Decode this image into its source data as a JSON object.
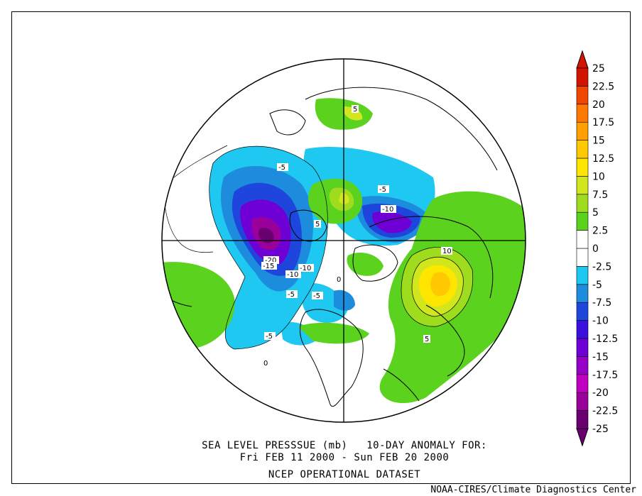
{
  "caption": {
    "line1": "SEA LEVEL PRESSSUE (mb)   10-DAY ANOMALY FOR:",
    "line2": "Fri FEB 11 2000 - Sun FEB 20 2000",
    "line3": "NCEP OPERATIONAL DATASET"
  },
  "credit": "NOAA-CIRES/Climate Diagnostics Center",
  "colorbar": {
    "bands": [
      {
        "color": "#6a0070"
      },
      {
        "color": "#9a009a"
      },
      {
        "color": "#c000c0"
      },
      {
        "color": "#9600c8"
      },
      {
        "color": "#6e00d6"
      },
      {
        "color": "#3a10dc"
      },
      {
        "color": "#1e46dc"
      },
      {
        "color": "#1e8cdc"
      },
      {
        "color": "#1ec8f0"
      },
      {
        "color": "#ffffff"
      },
      {
        "color": "#ffffff"
      },
      {
        "color": "#5ad21e"
      },
      {
        "color": "#a0dc1e"
      },
      {
        "color": "#d2e61e"
      },
      {
        "color": "#ffe600"
      },
      {
        "color": "#ffc800"
      },
      {
        "color": "#ffa000"
      },
      {
        "color": "#ff7800"
      },
      {
        "color": "#f04600"
      },
      {
        "color": "#d21400"
      }
    ],
    "tick_labels": [
      "25",
      "22.5",
      "20",
      "17.5",
      "15",
      "12.5",
      "10",
      "7.5",
      "5",
      "2.5",
      "0",
      "-2.5",
      "-5",
      "-7.5",
      "-10",
      "-12.5",
      "-15",
      "-17.5",
      "-20",
      "-22.5",
      "-25"
    ]
  },
  "contour_labels": [
    "5",
    "-5",
    "-5",
    "-10",
    "5",
    "10",
    "-20",
    "-15",
    "-10",
    "-5",
    "-10",
    "0",
    "-5",
    "5",
    "-5",
    "0"
  ],
  "colors": {
    "negative_light": "#1ec8f0",
    "negative_mid": "#1e8cdc",
    "negative_deep": "#1e46dc",
    "purple": "#6e00d6",
    "magenta": "#9a009a",
    "positive_green": "#5ad21e",
    "positive_lime": "#a0dc1e",
    "positive_yellow": "#ffe600"
  }
}
